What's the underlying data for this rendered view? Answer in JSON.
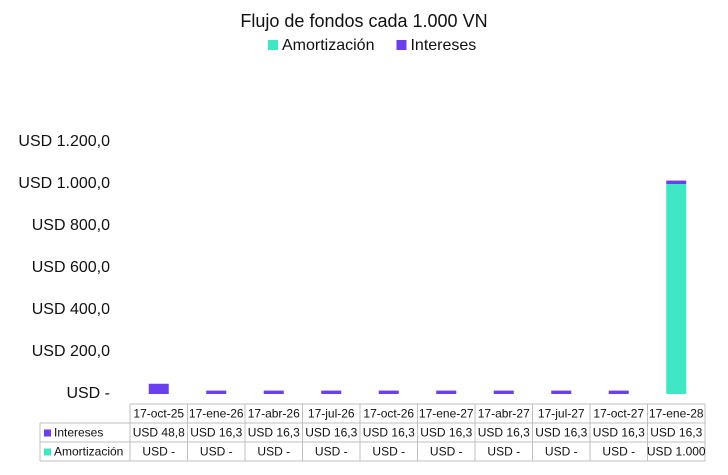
{
  "chart_data": {
    "type": "bar",
    "stacked": true,
    "title": "Flujo de fondos cada 1.000 VN",
    "categories": [
      "17-oct-25",
      "17-ene-26",
      "17-abr-26",
      "17-jul-26",
      "17-oct-26",
      "17-ene-27",
      "17-abr-27",
      "17-jul-27",
      "17-oct-27",
      "17-ene-28"
    ],
    "series": [
      {
        "name": "Amortización",
        "color": "#3fe8c5",
        "values": [
          0,
          0,
          0,
          0,
          0,
          0,
          0,
          0,
          0,
          1000
        ],
        "value_labels": [
          "USD -",
          "USD -",
          "USD -",
          "USD -",
          "USD -",
          "USD -",
          "USD -",
          "USD -",
          "USD -",
          "USD 1.000"
        ]
      },
      {
        "name": "Intereses",
        "color": "#6a3ff0",
        "values": [
          48.8,
          16.3,
          16.3,
          16.3,
          16.3,
          16.3,
          16.3,
          16.3,
          16.3,
          16.3
        ],
        "value_labels": [
          "USD 48,8",
          "USD 16,3",
          "USD 16,3",
          "USD 16,3",
          "USD 16,3",
          "USD 16,3",
          "USD 16,3",
          "USD 16,3",
          "USD 16,3",
          "USD 16,3"
        ]
      }
    ],
    "ylim": [
      0,
      1400
    ],
    "yticks": [
      {
        "value": 0,
        "label": "USD -"
      },
      {
        "value": 200,
        "label": "USD 200,0"
      },
      {
        "value": 400,
        "label": "USD 400,0"
      },
      {
        "value": 600,
        "label": "USD 600,0"
      },
      {
        "value": 800,
        "label": "USD 800,0"
      },
      {
        "value": 1000,
        "label": "USD 1.000,0"
      },
      {
        "value": 1200,
        "label": "USD 1.200,0"
      }
    ]
  }
}
